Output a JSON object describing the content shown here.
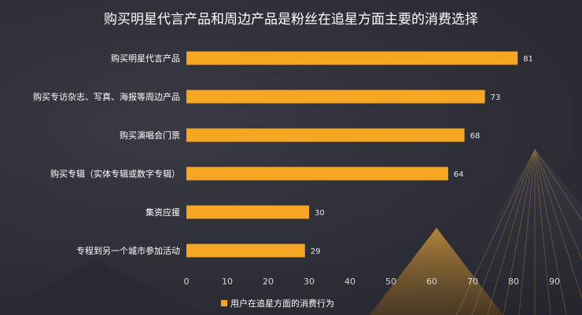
{
  "chart_data": {
    "type": "bar",
    "orientation": "horizontal",
    "title": "购买明星代言产品和周边产品是粉丝在追星方面主要的消费选择",
    "categories": [
      "购买明星代言产品",
      "购买专访杂志、写真、海报等周边产品",
      "购买演唱会门票",
      "购买专辑（实体专辑或数字专辑）",
      "集资应援",
      "专程到另一个城市参加活动"
    ],
    "series": [
      {
        "name": "用户在追星方面的消费行为",
        "values": [
          81,
          73,
          68,
          64,
          30,
          29
        ],
        "color": "#f5a623"
      }
    ],
    "xlim": [
      0,
      90
    ],
    "xticks": [
      0,
      10,
      20,
      30,
      40,
      50,
      60,
      70,
      80,
      90
    ],
    "grid": false,
    "legend": "bottom-center",
    "colors": {
      "background": "#2f2f38",
      "bar": "#f5a623",
      "text": "#ffffff",
      "accent_gold": "#c8963a"
    }
  }
}
